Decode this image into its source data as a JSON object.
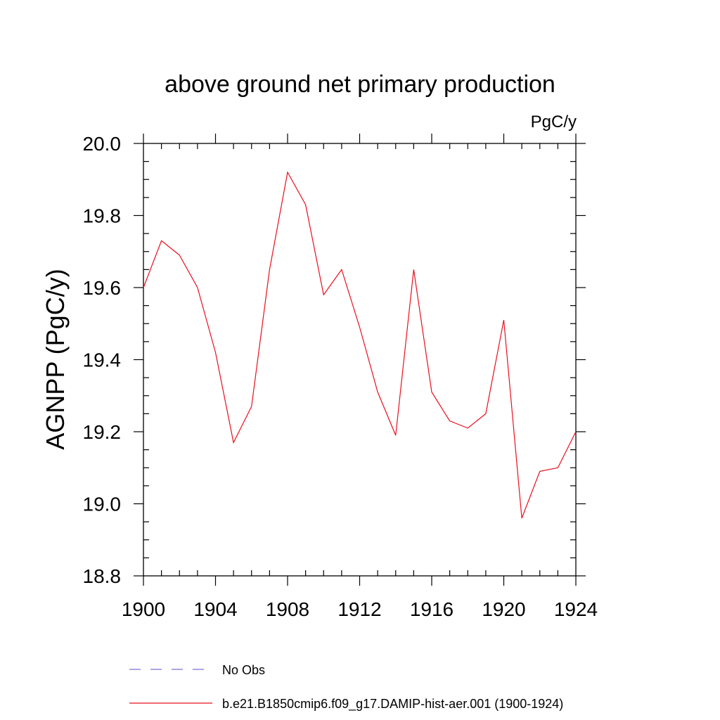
{
  "chart_data": {
    "type": "line",
    "title": "above ground net primary production",
    "units_label": "PgC/y",
    "ylabel": "AGNPP  (PgC/y)",
    "xlabel": "",
    "xlim": [
      1900,
      1924
    ],
    "ylim": [
      18.8,
      20.0
    ],
    "x_ticks": [
      "1900",
      "1904",
      "1908",
      "1912",
      "1916",
      "1920",
      "1924"
    ],
    "y_ticks": [
      "20.0",
      "19.8",
      "19.6",
      "19.4",
      "19.2",
      "19.0",
      "18.8"
    ],
    "grid": false,
    "legend_position": "bottom",
    "x": [
      1900,
      1901,
      1902,
      1903,
      1904,
      1905,
      1906,
      1907,
      1908,
      1909,
      1910,
      1911,
      1912,
      1913,
      1914,
      1915,
      1916,
      1917,
      1918,
      1919,
      1920,
      1921,
      1922,
      1923,
      1924
    ],
    "series": [
      {
        "name": "b.e21.B1850cmip6.f09_g17.DAMIP-hist-aer.001 (1900-1924)",
        "color": "#e8101e",
        "style": "solid",
        "values": [
          19.6,
          19.73,
          19.69,
          19.6,
          19.42,
          19.17,
          19.27,
          19.65,
          19.92,
          19.83,
          19.58,
          19.65,
          19.49,
          19.31,
          19.19,
          19.65,
          19.31,
          19.23,
          19.21,
          19.25,
          19.51,
          18.96,
          19.09,
          19.1,
          19.2
        ]
      }
    ],
    "legend": [
      {
        "label": "No Obs",
        "color": "#7b6fd6",
        "style": "dashed"
      },
      {
        "label": "b.e21.B1850cmip6.f09_g17.DAMIP-hist-aer.001 (1900-1924)",
        "color": "#e8101e",
        "style": "solid"
      }
    ]
  }
}
